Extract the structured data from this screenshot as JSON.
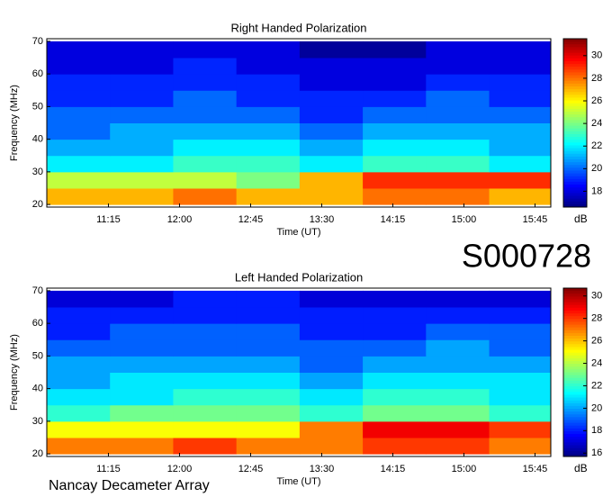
{
  "chart_data": [
    {
      "type": "heatmap",
      "title": "Right Handed Polarization",
      "xlabel": "Time (UT)",
      "ylabel": "Frequency (MHz)",
      "colormap": "jet",
      "clabel": "dB",
      "x": [
        656,
        696,
        736,
        776,
        816,
        856,
        896,
        936
      ],
      "y": [
        22.5,
        27.5,
        32.5,
        37.5,
        42.5,
        47.5,
        52.5,
        57.5,
        62.5,
        67.5
      ],
      "z": [
        [
          27,
          27,
          28,
          27,
          27,
          28,
          28,
          27
        ],
        [
          25,
          25,
          25,
          24,
          27,
          29,
          29,
          29
        ],
        [
          22,
          22,
          23,
          23,
          22,
          23,
          23,
          22
        ],
        [
          21,
          21,
          22,
          22,
          21,
          22,
          22,
          21
        ],
        [
          20,
          21,
          21,
          21,
          20,
          21,
          21,
          21
        ],
        [
          20,
          20,
          20,
          20,
          19,
          20,
          20,
          20
        ],
        [
          19,
          19,
          20,
          19,
          19,
          19,
          20,
          19
        ],
        [
          19,
          19,
          19,
          19,
          18,
          18,
          19,
          19
        ],
        [
          18,
          18,
          19,
          18,
          18,
          18,
          18,
          18
        ],
        [
          18,
          18,
          18,
          18,
          17,
          17,
          18,
          18
        ]
      ],
      "xlim": [
        636,
        955
      ],
      "ylim": [
        19.2,
        70.8
      ],
      "xticks": [
        {
          "value": 675,
          "label": "11:15"
        },
        {
          "value": 720,
          "label": "12:00"
        },
        {
          "value": 765,
          "label": "12:45"
        },
        {
          "value": 810,
          "label": "13:30"
        },
        {
          "value": 855,
          "label": "14:15"
        },
        {
          "value": 900,
          "label": "15:00"
        },
        {
          "value": 945,
          "label": "15:45"
        }
      ],
      "yticks": [
        20,
        30,
        40,
        50,
        60,
        70
      ],
      "clim": [
        16.6,
        31.5
      ],
      "cticks": [
        18,
        20,
        22,
        24,
        26,
        28,
        30
      ]
    },
    {
      "type": "heatmap",
      "title": "Left Handed Polarization",
      "xlabel": "Time (UT)",
      "ylabel": "Frequency (MHz)",
      "colormap": "jet",
      "clabel": "dB",
      "x": [
        656,
        696,
        736,
        776,
        816,
        856,
        896,
        936
      ],
      "y": [
        22.5,
        27.5,
        32.5,
        37.5,
        42.5,
        47.5,
        52.5,
        57.5,
        62.5,
        67.5
      ],
      "z": [
        [
          27,
          27,
          28,
          27,
          27,
          28,
          28,
          27
        ],
        [
          25,
          25,
          25,
          25,
          27,
          29,
          29,
          28
        ],
        [
          22,
          23,
          23,
          23,
          22,
          23,
          23,
          22
        ],
        [
          21,
          21,
          22,
          22,
          21,
          22,
          22,
          21
        ],
        [
          20,
          21,
          21,
          21,
          20,
          21,
          21,
          21
        ],
        [
          20,
          20,
          20,
          20,
          19,
          20,
          20,
          20
        ],
        [
          19,
          19,
          19,
          19,
          19,
          19,
          20,
          19
        ],
        [
          18,
          19,
          19,
          19,
          18,
          18,
          19,
          19
        ],
        [
          18,
          18,
          18,
          18,
          18,
          18,
          18,
          18
        ],
        [
          17,
          17,
          18,
          18,
          17,
          17,
          17,
          17
        ]
      ],
      "xlim": [
        636,
        955
      ],
      "ylim": [
        19.2,
        70.8
      ],
      "xticks": [
        {
          "value": 675,
          "label": "11:15"
        },
        {
          "value": 720,
          "label": "12:00"
        },
        {
          "value": 765,
          "label": "12:45"
        },
        {
          "value": 810,
          "label": "13:30"
        },
        {
          "value": 855,
          "label": "14:15"
        },
        {
          "value": 900,
          "label": "15:00"
        },
        {
          "value": 945,
          "label": "15:45"
        }
      ],
      "yticks": [
        20,
        30,
        40,
        50,
        60,
        70
      ],
      "clim": [
        15.7,
        30.7
      ],
      "cticks": [
        16,
        18,
        20,
        22,
        24,
        26,
        28,
        30
      ]
    }
  ],
  "id_label": "S000728",
  "footer": "Nancay Decameter Array"
}
